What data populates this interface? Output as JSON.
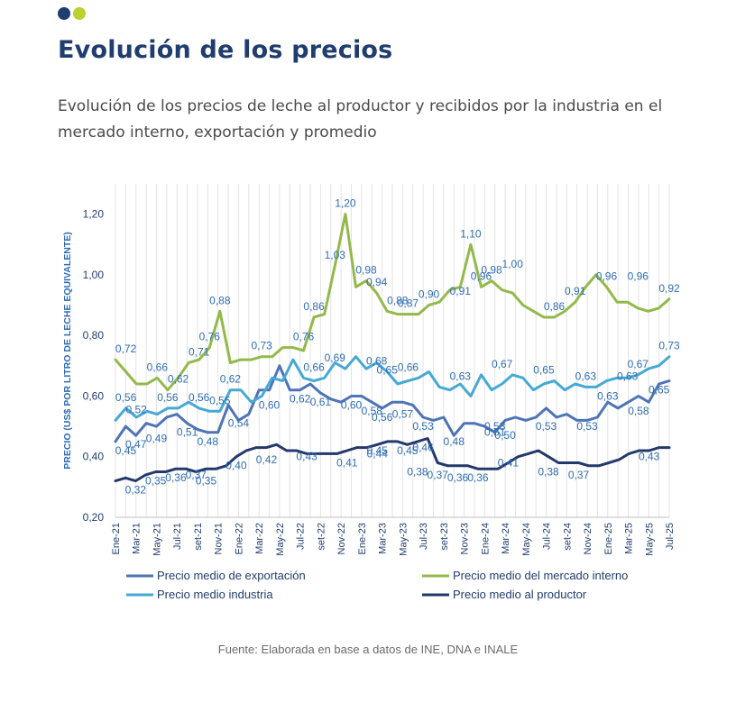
{
  "header": {
    "title": "Evolución de los precios",
    "subtitle": "Evolución de los precios de leche al productor y recibidos por la industria en el mercado interno, exportación y promedio",
    "dot_colors": [
      "#1f3d6e",
      "#bcd12e"
    ]
  },
  "source": "Fuente: Elaborada en base a datos de INE, DNA e INALE",
  "chart_data": {
    "type": "line",
    "ylabel": "PRECIO (US$ POR LITRO DE LECHE EQUIVALENTE)",
    "ylim": [
      0.2,
      1.3
    ],
    "yticks": [
      0.2,
      0.4,
      0.6,
      0.8,
      1.0,
      1.2
    ],
    "ytick_labels": [
      "0,20",
      "0,40",
      "0,60",
      "0,80",
      "1,00",
      "1,20"
    ],
    "x_tick_labels": [
      "Ene-21",
      "Mar-21",
      "May-21",
      "Jul-21",
      "set-21",
      "Nov-21",
      "Ene-22",
      "Mar-22",
      "May-22",
      "Jul-22",
      "set-22",
      "Nov-22",
      "Ene-23",
      "Mar-23",
      "May-23",
      "Jul-23",
      "set-23",
      "Nov-23",
      "Ene-24",
      "Mar-24",
      "May-24",
      "Jul-24",
      "set-24",
      "Nov-24",
      "Ene-25",
      "Mar-25",
      "May-25",
      "Jul-25"
    ],
    "grid": "vertical",
    "legend_position": "bottom",
    "series": [
      {
        "name": "Precio medio de exportación",
        "color": "#4e74b6",
        "values": [
          0.45,
          0.5,
          0.47,
          0.51,
          0.5,
          0.53,
          0.54,
          0.51,
          0.49,
          0.48,
          0.48,
          0.57,
          0.52,
          0.54,
          0.62,
          0.62,
          0.7,
          0.62,
          0.62,
          0.64,
          0.61,
          0.59,
          0.58,
          0.6,
          0.6,
          0.58,
          0.56,
          0.58,
          0.58,
          0.57,
          0.53,
          0.52,
          0.53,
          0.47,
          0.51,
          0.51,
          0.5,
          0.48,
          0.52,
          0.53,
          0.52,
          0.53,
          0.56,
          0.53,
          0.54,
          0.52,
          0.52,
          0.53,
          0.58,
          0.56,
          0.58,
          0.6,
          0.58,
          0.64,
          0.65
        ]
      },
      {
        "name": "Precio medio del mercado interno",
        "color": "#93b94a",
        "values": [
          0.72,
          0.68,
          0.64,
          0.64,
          0.66,
          0.62,
          0.66,
          0.71,
          0.72,
          0.76,
          0.88,
          0.71,
          0.72,
          0.72,
          0.73,
          0.73,
          0.76,
          0.76,
          0.75,
          0.86,
          0.87,
          1.03,
          1.2,
          0.96,
          0.98,
          0.94,
          0.88,
          0.87,
          0.87,
          0.87,
          0.9,
          0.91,
          0.95,
          0.96,
          1.1,
          0.96,
          0.98,
          0.95,
          0.94,
          0.9,
          0.88,
          0.86,
          0.86,
          0.88,
          0.91,
          0.96,
          1.0,
          0.96,
          0.91,
          0.91,
          0.89,
          0.88,
          0.89,
          0.92
        ]
      },
      {
        "name": "Precio medio industria",
        "color": "#45a9d4",
        "values": [
          0.52,
          0.56,
          0.53,
          0.55,
          0.54,
          0.56,
          0.56,
          0.58,
          0.56,
          0.55,
          0.55,
          0.62,
          0.62,
          0.58,
          0.6,
          0.66,
          0.65,
          0.72,
          0.66,
          0.65,
          0.66,
          0.71,
          0.69,
          0.73,
          0.69,
          0.71,
          0.68,
          0.64,
          0.65,
          0.66,
          0.68,
          0.63,
          0.62,
          0.64,
          0.6,
          0.67,
          0.62,
          0.64,
          0.67,
          0.66,
          0.62,
          0.64,
          0.65,
          0.62,
          0.64,
          0.63,
          0.63,
          0.65,
          0.66,
          0.66,
          0.67,
          0.69,
          0.7,
          0.73
        ]
      },
      {
        "name": "Precio medio al productor",
        "color": "#24396b",
        "values": [
          0.32,
          0.33,
          0.32,
          0.34,
          0.35,
          0.35,
          0.36,
          0.36,
          0.35,
          0.36,
          0.36,
          0.37,
          0.4,
          0.42,
          0.43,
          0.43,
          0.44,
          0.42,
          0.42,
          0.41,
          0.41,
          0.41,
          0.41,
          0.42,
          0.43,
          0.43,
          0.44,
          0.45,
          0.45,
          0.44,
          0.45,
          0.46,
          0.38,
          0.37,
          0.37,
          0.37,
          0.36,
          0.36,
          0.36,
          0.38,
          0.4,
          0.41,
          0.42,
          0.4,
          0.38,
          0.38,
          0.38,
          0.37,
          0.37,
          0.38,
          0.39,
          0.41,
          0.42,
          0.42,
          0.43,
          0.43
        ]
      }
    ],
    "annotations": [
      {
        "text": "0,72",
        "x": 1,
        "y": 0.72,
        "series": 1
      },
      {
        "text": "0,66",
        "x": 4,
        "y": 0.66,
        "series": 1
      },
      {
        "text": "0,71",
        "x": 8,
        "y": 0.71,
        "series": 1
      },
      {
        "text": "0,76",
        "x": 9,
        "y": 0.76,
        "series": 1
      },
      {
        "text": "0,88",
        "x": 10,
        "y": 0.88,
        "series": 1
      },
      {
        "text": "0,73",
        "x": 14,
        "y": 0.73,
        "series": 1
      },
      {
        "text": "0,76",
        "x": 18,
        "y": 0.76,
        "series": 1
      },
      {
        "text": "0,86",
        "x": 19,
        "y": 0.86,
        "series": 1
      },
      {
        "text": "1,03",
        "x": 21,
        "y": 1.03,
        "series": 1
      },
      {
        "text": "1,20",
        "x": 22,
        "y": 1.2,
        "series": 1
      },
      {
        "text": "0,98",
        "x": 24,
        "y": 0.98,
        "series": 1
      },
      {
        "text": "0,94",
        "x": 25,
        "y": 0.94,
        "series": 1
      },
      {
        "text": "0,88",
        "x": 27,
        "y": 0.88,
        "series": 1
      },
      {
        "text": "0,87",
        "x": 28,
        "y": 0.87,
        "series": 1
      },
      {
        "text": "0,90",
        "x": 30,
        "y": 0.9,
        "series": 1
      },
      {
        "text": "0,91",
        "x": 33,
        "y": 0.91,
        "series": 1
      },
      {
        "text": "1,10",
        "x": 34,
        "y": 1.1,
        "series": 1
      },
      {
        "text": "0,96",
        "x": 35,
        "y": 0.96,
        "series": 1
      },
      {
        "text": "0,98",
        "x": 36,
        "y": 0.98,
        "series": 1
      },
      {
        "text": "1,00",
        "x": 38,
        "y": 1.0,
        "series": 1
      },
      {
        "text": "0,86",
        "x": 42,
        "y": 0.86,
        "series": 1
      },
      {
        "text": "0,91",
        "x": 44,
        "y": 0.91,
        "series": 1
      },
      {
        "text": "0,96",
        "x": 47,
        "y": 0.96,
        "series": 1
      },
      {
        "text": "0,96",
        "x": 50,
        "y": 0.96,
        "series": 1
      },
      {
        "text": "0,92",
        "x": 53,
        "y": 0.92,
        "series": 1
      },
      {
        "text": "0,56",
        "x": 1,
        "y": 0.56,
        "series": 2
      },
      {
        "text": "0,52",
        "x": 2,
        "y": 0.52,
        "series": 2
      },
      {
        "text": "0,56",
        "x": 5,
        "y": 0.56,
        "series": 2
      },
      {
        "text": "0,62",
        "x": 6,
        "y": 0.62,
        "series": 2
      },
      {
        "text": "0,56",
        "x": 8,
        "y": 0.56,
        "series": 2
      },
      {
        "text": "0,55",
        "x": 10,
        "y": 0.55,
        "series": 2
      },
      {
        "text": "0,62",
        "x": 11,
        "y": 0.62,
        "series": 2
      },
      {
        "text": "0,66",
        "x": 19,
        "y": 0.66,
        "series": 2
      },
      {
        "text": "0,69",
        "x": 21,
        "y": 0.69,
        "series": 2
      },
      {
        "text": "0,68",
        "x": 25,
        "y": 0.68,
        "series": 2
      },
      {
        "text": "0,65",
        "x": 26,
        "y": 0.65,
        "series": 2
      },
      {
        "text": "0,66",
        "x": 28,
        "y": 0.66,
        "series": 2
      },
      {
        "text": "0,63",
        "x": 33,
        "y": 0.63,
        "series": 2
      },
      {
        "text": "0,67",
        "x": 37,
        "y": 0.67,
        "series": 2
      },
      {
        "text": "0,65",
        "x": 41,
        "y": 0.65,
        "series": 2
      },
      {
        "text": "0,63",
        "x": 45,
        "y": 0.63,
        "series": 2
      },
      {
        "text": "0,63",
        "x": 49,
        "y": 0.63,
        "series": 2
      },
      {
        "text": "0,67",
        "x": 50,
        "y": 0.67,
        "series": 2
      },
      {
        "text": "0,73",
        "x": 53,
        "y": 0.73,
        "series": 2
      },
      {
        "text": "0,45",
        "x": 1,
        "y": 0.45,
        "series": 0
      },
      {
        "text": "0,47",
        "x": 2,
        "y": 0.47,
        "series": 0
      },
      {
        "text": "0,49",
        "x": 4,
        "y": 0.49,
        "series": 0
      },
      {
        "text": "0,51",
        "x": 7,
        "y": 0.51,
        "series": 0
      },
      {
        "text": "0,48",
        "x": 9,
        "y": 0.48,
        "series": 0
      },
      {
        "text": "0,54",
        "x": 12,
        "y": 0.54,
        "series": 0
      },
      {
        "text": "0,60",
        "x": 15,
        "y": 0.6,
        "series": 0
      },
      {
        "text": "0,62",
        "x": 18,
        "y": 0.62,
        "series": 0
      },
      {
        "text": "0,61",
        "x": 20,
        "y": 0.61,
        "series": 0
      },
      {
        "text": "0,60",
        "x": 23,
        "y": 0.6,
        "series": 0
      },
      {
        "text": "0,58",
        "x": 25,
        "y": 0.58,
        "series": 0
      },
      {
        "text": "0,56",
        "x": 26,
        "y": 0.56,
        "series": 0
      },
      {
        "text": "0,57",
        "x": 28,
        "y": 0.57,
        "series": 0
      },
      {
        "text": "0,53",
        "x": 30,
        "y": 0.53,
        "series": 0
      },
      {
        "text": "0,46",
        "x": 30,
        "y": 0.46,
        "series": 0
      },
      {
        "text": "0,48",
        "x": 33,
        "y": 0.48,
        "series": 0
      },
      {
        "text": "0,53",
        "x": 37,
        "y": 0.53,
        "series": 0
      },
      {
        "text": "0,51",
        "x": 37,
        "y": 0.51,
        "series": 0
      },
      {
        "text": "0,50",
        "x": 38,
        "y": 0.5,
        "series": 0
      },
      {
        "text": "0,53",
        "x": 42,
        "y": 0.53,
        "series": 0
      },
      {
        "text": "0,53",
        "x": 46,
        "y": 0.53,
        "series": 0
      },
      {
        "text": "0,63",
        "x": 48,
        "y": 0.63,
        "series": 0
      },
      {
        "text": "0,58",
        "x": 51,
        "y": 0.58,
        "series": 0
      },
      {
        "text": "0,65",
        "x": 53,
        "y": 0.65,
        "series": 0
      },
      {
        "text": "0,32",
        "x": 2,
        "y": 0.32,
        "series": 3
      },
      {
        "text": "0,35",
        "x": 4,
        "y": 0.35,
        "series": 3
      },
      {
        "text": "0,36",
        "x": 6,
        "y": 0.36,
        "series": 3
      },
      {
        "text": "0,37",
        "x": 8,
        "y": 0.37,
        "series": 3
      },
      {
        "text": "0,35",
        "x": 9,
        "y": 0.35,
        "series": 3
      },
      {
        "text": "0,40",
        "x": 12,
        "y": 0.4,
        "series": 3
      },
      {
        "text": "0,42",
        "x": 15,
        "y": 0.42,
        "series": 3
      },
      {
        "text": "0,43",
        "x": 19,
        "y": 0.43,
        "series": 3
      },
      {
        "text": "0,41",
        "x": 23,
        "y": 0.41,
        "series": 3
      },
      {
        "text": "0,44",
        "x": 26,
        "y": 0.44,
        "series": 3
      },
      {
        "text": "0,45",
        "x": 26,
        "y": 0.45,
        "series": 3
      },
      {
        "text": "0,45",
        "x": 29,
        "y": 0.45,
        "series": 3
      },
      {
        "text": "0,38",
        "x": 30,
        "y": 0.38,
        "series": 3
      },
      {
        "text": "0,37",
        "x": 32,
        "y": 0.37,
        "series": 3
      },
      {
        "text": "0,36",
        "x": 34,
        "y": 0.36,
        "series": 3
      },
      {
        "text": "0,36",
        "x": 36,
        "y": 0.36,
        "series": 3
      },
      {
        "text": "0,41",
        "x": 39,
        "y": 0.41,
        "series": 3
      },
      {
        "text": "0,38",
        "x": 43,
        "y": 0.38,
        "series": 3
      },
      {
        "text": "0,37",
        "x": 46,
        "y": 0.37,
        "series": 3
      },
      {
        "text": "0,43",
        "x": 53,
        "y": 0.43,
        "series": 3
      }
    ]
  }
}
